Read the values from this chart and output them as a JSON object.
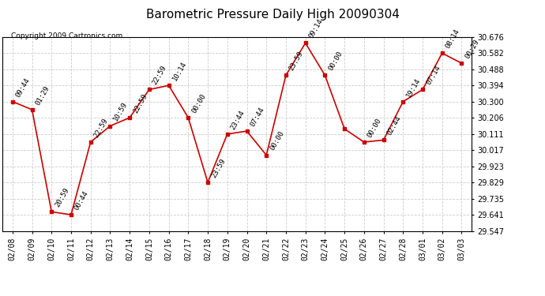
{
  "title": "Barometric Pressure Daily High 20090304",
  "copyright": "Copyright 2009 Cartronics.com",
  "background_color": "#ffffff",
  "plot_bg_color": "#ffffff",
  "grid_color": "#cccccc",
  "line_color": "#cc0000",
  "marker_color": "#cc0000",
  "text_color": "#000000",
  "xlabels": [
    "02/08",
    "02/09",
    "02/10",
    "02/11",
    "02/12",
    "02/13",
    "02/14",
    "02/15",
    "02/16",
    "02/17",
    "02/18",
    "02/19",
    "02/20",
    "02/21",
    "02/22",
    "02/23",
    "02/24",
    "02/25",
    "02/26",
    "02/27",
    "02/28",
    "03/01",
    "03/02",
    "03/03"
  ],
  "yvalues": [
    30.3,
    30.253,
    29.658,
    29.641,
    30.064,
    30.158,
    30.206,
    30.37,
    30.394,
    30.206,
    29.829,
    30.111,
    30.128,
    29.988,
    30.453,
    30.641,
    30.453,
    30.141,
    30.064,
    30.076,
    30.3,
    30.37,
    30.582,
    30.523
  ],
  "point_labels": [
    "09:44",
    "01:29",
    "20:59",
    "00:44",
    "22:59",
    "10:59",
    "22:59",
    "22:59",
    "10:14",
    "00:00",
    "23:59",
    "23:44",
    "07:44",
    "00:00",
    "23:59",
    "09:14",
    "00:00",
    "",
    "00:00",
    "02:44",
    "19:14",
    "07:14",
    "08:14",
    "00:29"
  ],
  "ylim_min": 29.547,
  "ylim_max": 30.676,
  "yticks": [
    29.547,
    29.641,
    29.735,
    29.829,
    29.923,
    30.017,
    30.111,
    30.206,
    30.3,
    30.394,
    30.488,
    30.582,
    30.676
  ],
  "title_fontsize": 11,
  "label_fontsize": 6.5,
  "tick_fontsize": 7,
  "copyright_fontsize": 6.5
}
